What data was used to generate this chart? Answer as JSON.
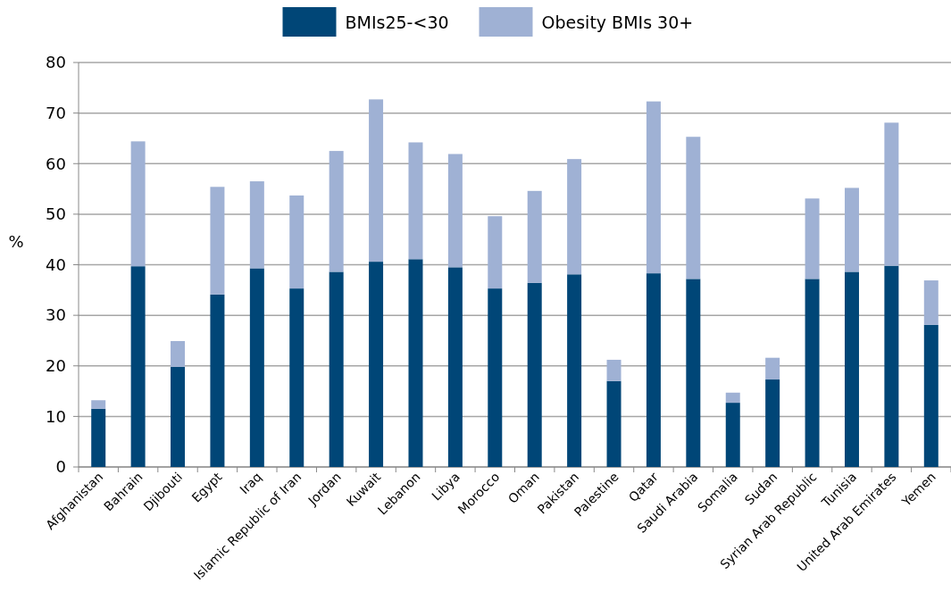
{
  "chart_data": {
    "type": "bar",
    "stacked": true,
    "ylabel": "%",
    "categories": [
      "Afghanistan",
      "Bahrain",
      "Djibouti",
      "Egypt",
      "Iraq",
      "Islamic Republic of Iran",
      "Jordan",
      "Kuwait",
      "Lebanon",
      "Libya",
      "Morocco",
      "Oman",
      "Pakistan",
      "Palestine",
      "Qatar",
      "Saudi Arabia",
      "Somalia",
      "Sudan",
      "Syrian Arab Republic",
      "Tunisia",
      "United Arab Emirates",
      "Yemen"
    ],
    "series": [
      {
        "name": "BMIs25-<30",
        "color": "#004677",
        "values": [
          11.5,
          39.7,
          19.8,
          34.1,
          39.3,
          35.3,
          38.6,
          40.6,
          41.1,
          39.5,
          35.3,
          36.4,
          38.1,
          17.0,
          38.3,
          37.2,
          12.7,
          17.3,
          37.2,
          38.6,
          39.8,
          28.1
        ]
      },
      {
        "name": "Obesity BMIs 30+",
        "color": "#9fb1d4",
        "values": [
          1.7,
          24.7,
          5.1,
          21.3,
          17.2,
          18.4,
          23.9,
          32.1,
          23.1,
          22.4,
          14.3,
          18.2,
          22.8,
          4.2,
          34.0,
          28.1,
          2.0,
          4.3,
          15.9,
          16.6,
          28.3,
          8.8
        ]
      }
    ],
    "ylim": [
      0,
      80
    ],
    "yticks": [
      0,
      10,
      20,
      30,
      40,
      50,
      60,
      70,
      80
    ],
    "grid": "y",
    "legend": "top"
  }
}
